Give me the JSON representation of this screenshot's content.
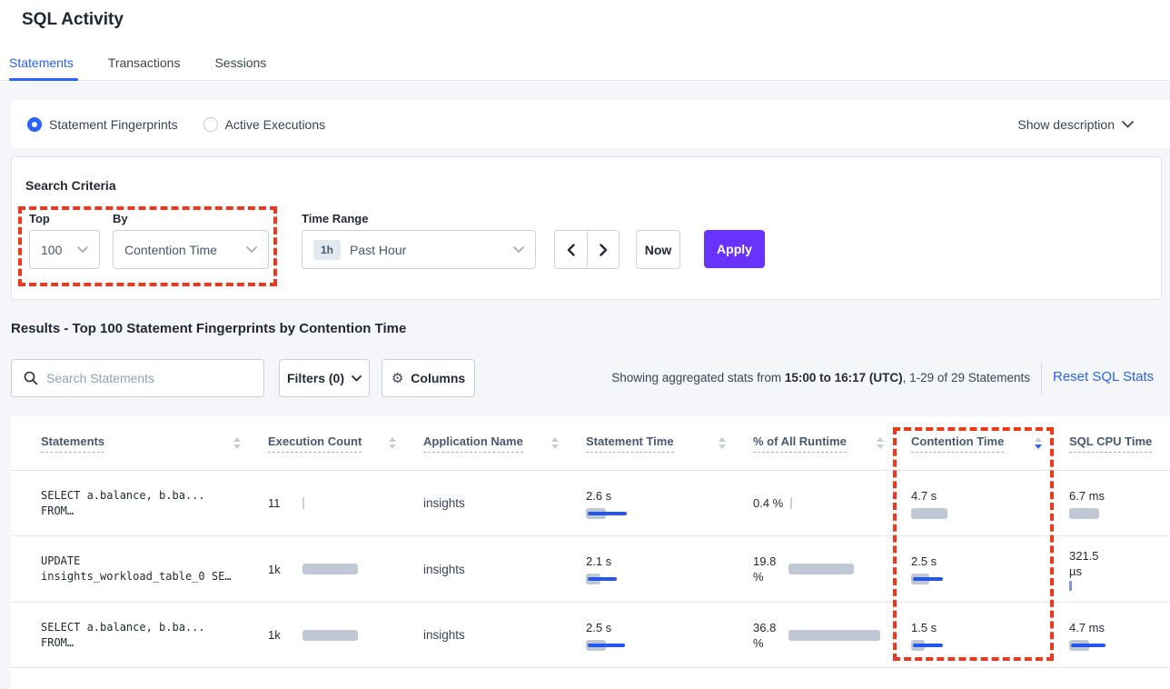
{
  "page": {
    "title": "SQL Activity"
  },
  "tabs": [
    {
      "label": "Statements",
      "active": true
    },
    {
      "label": "Transactions",
      "active": false
    },
    {
      "label": "Sessions",
      "active": false
    }
  ],
  "view_toggle": {
    "options": [
      {
        "label": "Statement Fingerprints",
        "selected": true
      },
      {
        "label": "Active Executions",
        "selected": false
      }
    ],
    "show_description_label": "Show description"
  },
  "search_criteria": {
    "title": "Search Criteria",
    "top": {
      "label": "Top",
      "value": "100"
    },
    "by": {
      "label": "By",
      "value": "Contention Time"
    },
    "time_range": {
      "label": "Time Range",
      "badge": "1h",
      "value": "Past Hour"
    },
    "now_label": "Now",
    "apply_label": "Apply"
  },
  "results": {
    "heading": "Results - Top 100 Statement Fingerprints by Contention Time",
    "search_placeholder": "Search Statements",
    "filters_label": "Filters (0)",
    "columns_label": "Columns",
    "status": {
      "prefix": "Showing aggregated stats from ",
      "bold": "15:00 to 16:17 (UTC)",
      "suffix": ", 1-29 of 29 Statements"
    },
    "reset_label": "Reset SQL Stats"
  },
  "table": {
    "columns": [
      {
        "label": "Statements",
        "sort": "none"
      },
      {
        "label": "Execution Count",
        "sort": "none"
      },
      {
        "label": "Application Name",
        "sort": "none"
      },
      {
        "label": "Statement Time",
        "sort": "none"
      },
      {
        "label": "% of All Runtime",
        "sort": "none"
      },
      {
        "label": "Contention Time",
        "sort": "desc"
      },
      {
        "label": "SQL CPU Time",
        "sort": "none"
      }
    ],
    "rows": [
      {
        "statement": [
          "SELECT a.balance, b.ba...",
          "FROM…"
        ],
        "execution_count": "11",
        "application": "insights",
        "statement_time": "2.6 s",
        "pct_runtime": "0.4 %",
        "contention_time": "4.7 s",
        "sql_cpu_time": "6.7 ms",
        "bars": {
          "exec_gray": 2,
          "stmt_gray": 22,
          "stmt_blue": 43,
          "pct_gray": 2,
          "cont_gray": 40,
          "cont_blue": 0,
          "cpu_gray": 33,
          "cpu_blue": 0
        }
      },
      {
        "statement": [
          "UPDATE",
          "insights_workload_table_0 SE…"
        ],
        "execution_count": "1k",
        "application": "insights",
        "statement_time": "2.1 s",
        "pct_runtime": "19.8 %",
        "contention_time": "2.5 s",
        "sql_cpu_time": "321.5 µs",
        "bars": {
          "exec_gray": 61,
          "stmt_gray": 16,
          "stmt_blue": 32,
          "pct_gray": 72,
          "cont_gray": 20,
          "cont_blue": 33,
          "cpu_gray": 3,
          "cpu_blue": 0
        }
      },
      {
        "statement": [
          "SELECT a.balance, b.ba...",
          "FROM…"
        ],
        "execution_count": "1k",
        "application": "insights",
        "statement_time": "2.5 s",
        "pct_runtime": "36.8 %",
        "contention_time": "1.5 s",
        "sql_cpu_time": "4.7 ms",
        "bars": {
          "exec_gray": 61,
          "stmt_gray": 22,
          "stmt_blue": 41,
          "pct_gray": 101,
          "cont_gray": 15,
          "cont_blue": 33,
          "cpu_gray": 22,
          "cpu_blue": 38
        }
      }
    ]
  },
  "colors": {
    "accent_blue": "#2962ff",
    "apply_purple": "#6933ff",
    "annotation_red": "#f0371c",
    "bar_gray": "#c0c8d6",
    "bar_blue": "#2456f0"
  }
}
